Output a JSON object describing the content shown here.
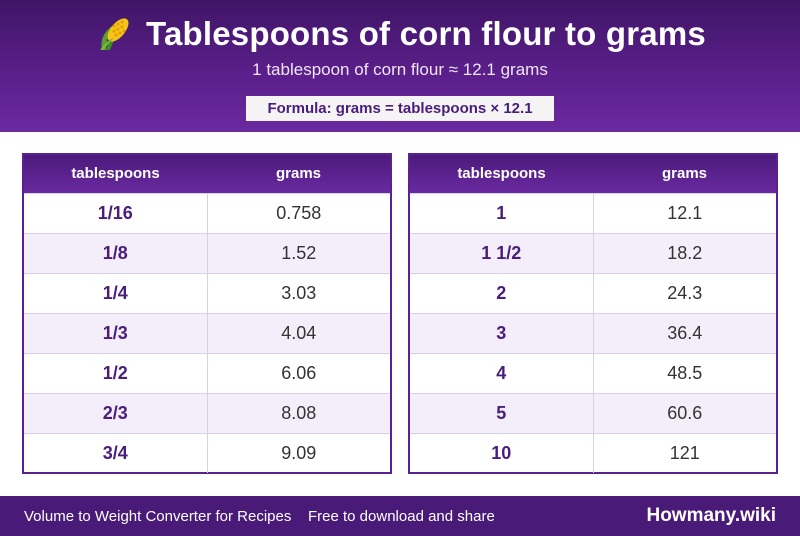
{
  "header": {
    "icon": "corn-icon",
    "title": "Tablespoons of corn flour to grams",
    "subtitle": "1 tablespoon of corn flour ≈ 12.1 grams",
    "formula": "Formula: grams = tablespoons × 12.1"
  },
  "colors": {
    "primary": "#5b2191",
    "header_bg": "#4a1a78",
    "row_alt": "#f3eefa"
  },
  "table_left": {
    "headers": [
      "tablespoons",
      "grams"
    ],
    "rows": [
      [
        "1/16",
        "0.758"
      ],
      [
        "1/8",
        "1.52"
      ],
      [
        "1/4",
        "3.03"
      ],
      [
        "1/3",
        "4.04"
      ],
      [
        "1/2",
        "6.06"
      ],
      [
        "2/3",
        "8.08"
      ],
      [
        "3/4",
        "9.09"
      ]
    ]
  },
  "table_right": {
    "headers": [
      "tablespoons",
      "grams"
    ],
    "rows": [
      [
        "1",
        "12.1"
      ],
      [
        "1 1/2",
        "18.2"
      ],
      [
        "2",
        "24.3"
      ],
      [
        "3",
        "36.4"
      ],
      [
        "4",
        "48.5"
      ],
      [
        "5",
        "60.6"
      ],
      [
        "10",
        "121"
      ]
    ]
  },
  "footer": {
    "description": "Volume to Weight Converter for Recipes",
    "share": "Free to download and share",
    "brand": "Howmany.wiki"
  }
}
